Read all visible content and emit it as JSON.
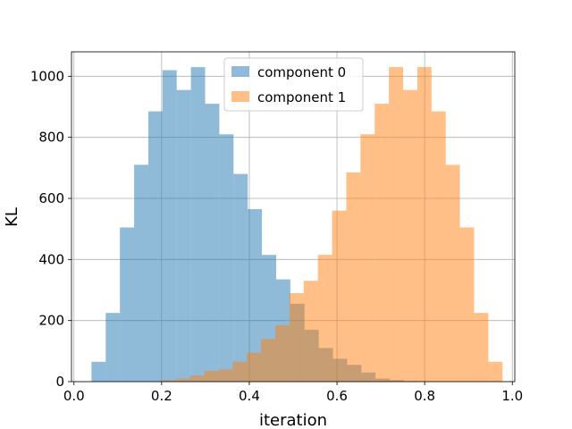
{
  "chart_data": {
    "type": "bar",
    "subtype": "histogram",
    "title": "",
    "xlabel": "iteration",
    "ylabel": "KL",
    "xlim": [
      0,
      1
    ],
    "ylim": [
      0,
      1080
    ],
    "x_ticks": [
      0.0,
      0.2,
      0.4,
      0.6,
      0.8,
      1.0
    ],
    "x_tick_labels": [
      "0.0",
      "0.2",
      "0.4",
      "0.6",
      "0.8",
      "1.0"
    ],
    "y_ticks": [
      0,
      200,
      400,
      600,
      800,
      1000
    ],
    "y_tick_labels": [
      "0",
      "200",
      "400",
      "600",
      "800",
      "1000"
    ],
    "grid": true,
    "legend_position": "top-center",
    "bin_edges": [
      0.04,
      0.0724,
      0.1048,
      0.1372,
      0.1696,
      0.202,
      0.2344,
      0.2668,
      0.2992,
      0.3316,
      0.364,
      0.3964,
      0.4288,
      0.4612,
      0.4936,
      0.526,
      0.5584,
      0.5908,
      0.6232,
      0.6556,
      0.688,
      0.7204,
      0.7528,
      0.7852,
      0.8176,
      0.85,
      0.8824,
      0.9148,
      0.9472
    ],
    "series": [
      {
        "name": "component 0",
        "color": "#1f77b4",
        "alpha": 0.5,
        "bin_start": 0.04,
        "bin_width": 0.0324,
        "values": [
          65,
          225,
          505,
          710,
          885,
          1020,
          955,
          1030,
          910,
          810,
          680,
          565,
          415,
          335,
          255,
          170,
          110,
          75,
          55,
          30,
          10,
          5,
          2,
          0,
          0,
          0,
          0,
          0
        ]
      },
      {
        "name": "component 1",
        "color": "#ff7f0e",
        "alpha": 0.5,
        "bin_start": 0.2,
        "bin_width": 0.0324,
        "values": [
          5,
          10,
          20,
          35,
          40,
          65,
          95,
          140,
          185,
          290,
          330,
          415,
          560,
          685,
          810,
          910,
          1030,
          955,
          1030,
          885,
          710,
          505,
          225,
          65
        ]
      }
    ]
  }
}
